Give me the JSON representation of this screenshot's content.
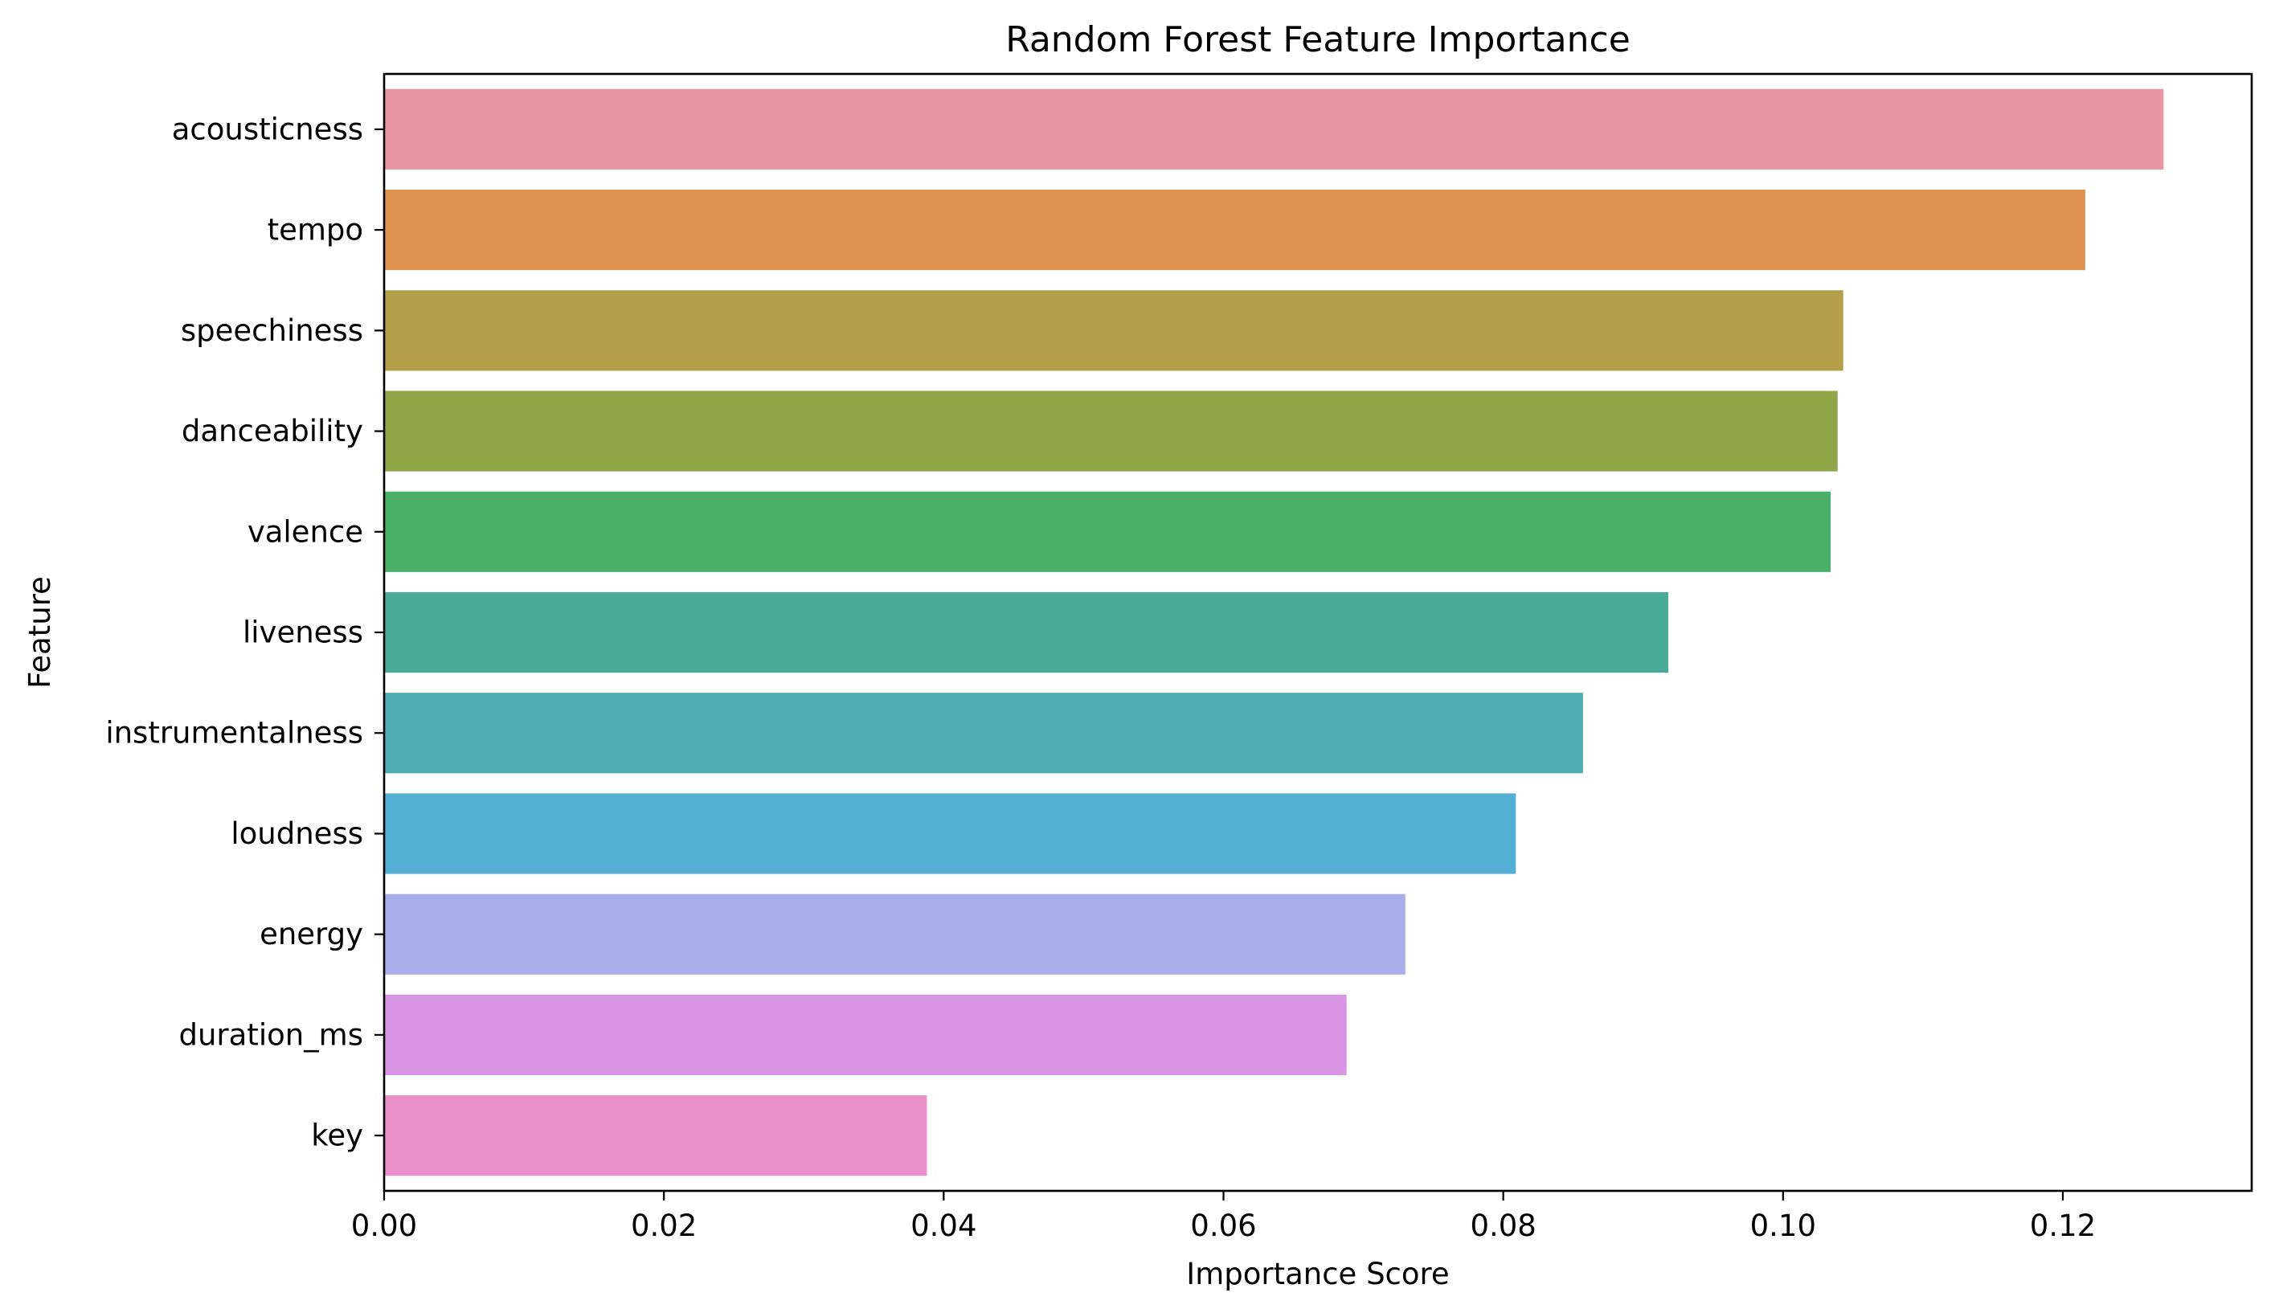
{
  "chart_data": {
    "type": "bar",
    "orientation": "horizontal",
    "title": "Random Forest Feature Importance",
    "xlabel": "Importance Score",
    "ylabel": "Feature",
    "xlim": [
      0,
      0.1335
    ],
    "xticks": [
      "0.00",
      "0.02",
      "0.04",
      "0.06",
      "0.08",
      "0.10",
      "0.12"
    ],
    "xtick_values": [
      0.0,
      0.02,
      0.04,
      0.06,
      0.08,
      0.1,
      0.12
    ],
    "grid": false,
    "legend": "none",
    "categories": [
      "acousticness",
      "tempo",
      "speechiness",
      "danceability",
      "valence",
      "liveness",
      "instrumentalness",
      "loudness",
      "energy",
      "duration_ms",
      "key"
    ],
    "values": [
      0.1272,
      0.1216,
      0.1043,
      0.1039,
      0.1034,
      0.0918,
      0.0857,
      0.0809,
      0.073,
      0.0688,
      0.0388
    ],
    "colors": [
      "#ea96a2",
      "#dd934f",
      "#b39f49",
      "#8fa748",
      "#4aaf69",
      "#4aaa98",
      "#4eabb1",
      "#55aed4",
      "#a8aeea",
      "#d895e4",
      "#ea8fc9"
    ]
  }
}
